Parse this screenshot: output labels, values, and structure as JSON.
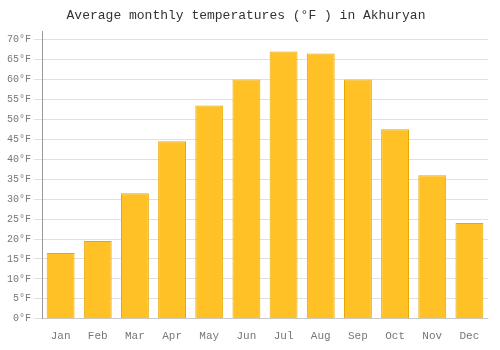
{
  "chart_data": {
    "type": "bar",
    "title": "Average monthly temperatures (°F ) in Akhuryan",
    "categories": [
      "Jan",
      "Feb",
      "Mar",
      "Apr",
      "May",
      "Jun",
      "Jul",
      "Aug",
      "Sep",
      "Oct",
      "Nov",
      "Dec"
    ],
    "values": [
      16.5,
      19.5,
      31.5,
      44.5,
      53.5,
      60.0,
      67.0,
      66.5,
      60.0,
      47.5,
      36.0,
      24.0
    ],
    "color": "#FFC125",
    "ylim": [
      0,
      72
    ],
    "yticks": [
      {
        "value": 0,
        "label": "0°F"
      },
      {
        "value": 5,
        "label": "5°F"
      },
      {
        "value": 10,
        "label": "10°F"
      },
      {
        "value": 15,
        "label": "15°F"
      },
      {
        "value": 20,
        "label": "20°F"
      },
      {
        "value": 25,
        "label": "25°F"
      },
      {
        "value": 30,
        "label": "30°F"
      },
      {
        "value": 35,
        "label": "35°F"
      },
      {
        "value": 40,
        "label": "40°F"
      },
      {
        "value": 45,
        "label": "45°F"
      },
      {
        "value": 50,
        "label": "50°F"
      },
      {
        "value": 55,
        "label": "55°F"
      },
      {
        "value": 60,
        "label": "60°F"
      },
      {
        "value": 65,
        "label": "65°F"
      },
      {
        "value": 70,
        "label": "70°F"
      }
    ],
    "grid": true
  }
}
